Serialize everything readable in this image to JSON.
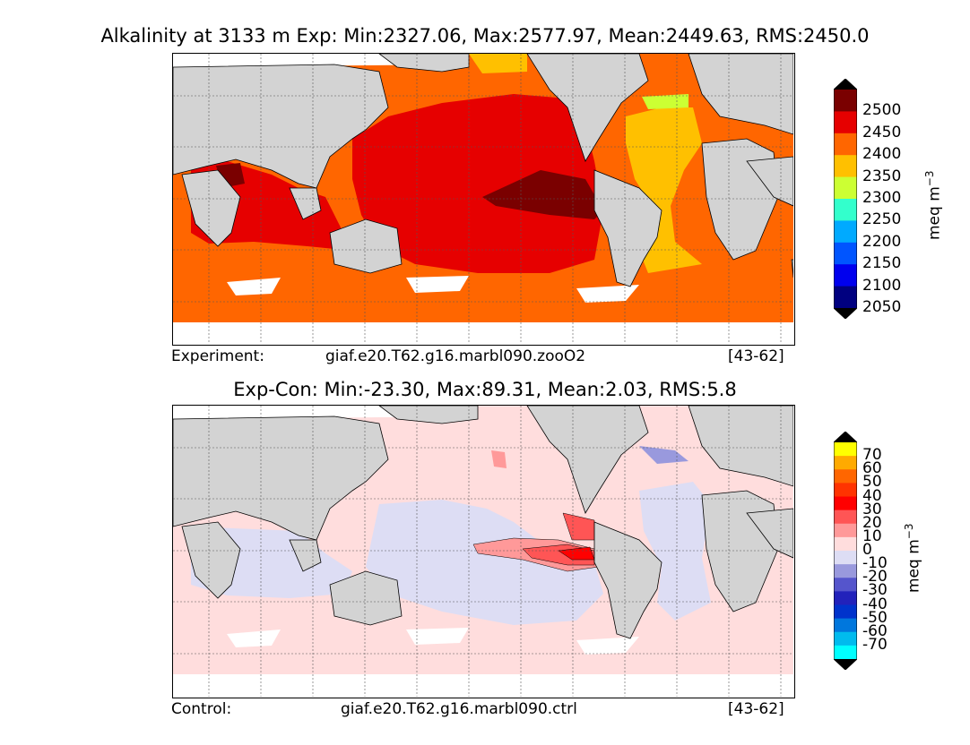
{
  "top_panel": {
    "title": "Alkalinity at 3133 m Exp: Min:2327.06, Max:2577.97, Mean:2449.63, RMS:2450.0",
    "footer_label": "Experiment:",
    "footer_case": "giaf.e20.T62.g16.marbl090.zooO2",
    "footer_years": "[43-62]",
    "colorbar": {
      "units": "meq m",
      "units_exp": "−3",
      "ticks": [
        "2500",
        "2450",
        "2400",
        "2350",
        "2300",
        "2250",
        "2200",
        "2150",
        "2100",
        "2050"
      ],
      "colors": [
        "#7a0000",
        "#e60000",
        "#ff6600",
        "#ffc000",
        "#ccff33",
        "#33ffcc",
        "#00aaff",
        "#0055ff",
        "#0000ee",
        "#000080"
      ],
      "over_color": "#000000",
      "under_color": "#000000"
    }
  },
  "bottom_panel": {
    "title": "Exp-Con: Min:-23.30, Max:89.31, Mean:2.03, RMS:5.8",
    "footer_label": "Control:",
    "footer_case": "giaf.e20.T62.g16.marbl090.ctrl",
    "footer_years": "[43-62]",
    "colorbar": {
      "units": "meq m",
      "units_exp": "−3",
      "ticks": [
        "70",
        "60",
        "50",
        "40",
        "30",
        "20",
        "10",
        "0",
        "-10",
        "-20",
        "-30",
        "-40",
        "-50",
        "-60",
        "-70"
      ],
      "colors": [
        "#ffff00",
        "#ffaa00",
        "#ff6600",
        "#ff3300",
        "#ff0000",
        "#ff5555",
        "#ff9999",
        "#ffdddd",
        "#ddddf4",
        "#9999dd",
        "#5555cc",
        "#2222bb",
        "#0033cc",
        "#0077dd",
        "#00bbee",
        "#00ffff"
      ],
      "over_color": "#000000",
      "under_color": "#000000"
    }
  }
}
